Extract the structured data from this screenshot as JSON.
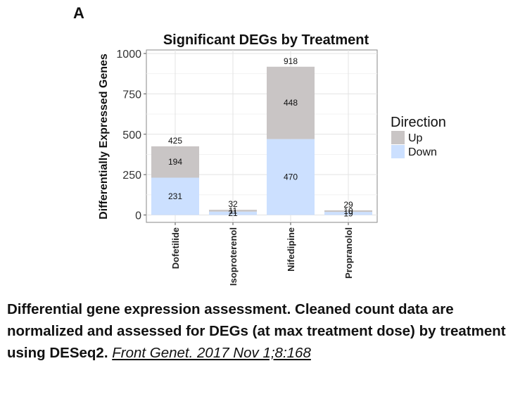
{
  "panel_label": "A",
  "caption": {
    "text": "Differential gene expression assessment. Cleaned count data are normalized and assessed for DEGs (at max treatment dose) by treatment using DESeq2.",
    "citation": "Front Genet. 2017 Nov 1;8:168"
  },
  "chart_data": {
    "type": "bar",
    "stacked": true,
    "title": "Significant DEGs by Treatment",
    "xlabel": "",
    "ylabel": "Differentially Expressed Genes",
    "ylim": [
      0,
      1030
    ],
    "yticks": [
      0,
      250,
      500,
      750,
      1000
    ],
    "grid": true,
    "legend_title": "Direction",
    "legend_position": "right",
    "categories": [
      "Dofetilide",
      "Isoproterenol",
      "Nifedipine",
      "Propranolol"
    ],
    "series": [
      {
        "name": "Down",
        "color": "#cce0ff",
        "values": [
          231,
          21,
          470,
          19
        ]
      },
      {
        "name": "Up",
        "color": "#c9c5c5",
        "values": [
          194,
          11,
          448,
          10
        ]
      }
    ],
    "legend_order": [
      "Up",
      "Down"
    ],
    "segment_labels": {
      "Down": [
        "231",
        "21",
        "470",
        "19"
      ],
      "Up": [
        "194",
        "11",
        "448",
        "10"
      ]
    },
    "total_labels": [
      "425",
      "32",
      "918",
      "29"
    ]
  }
}
